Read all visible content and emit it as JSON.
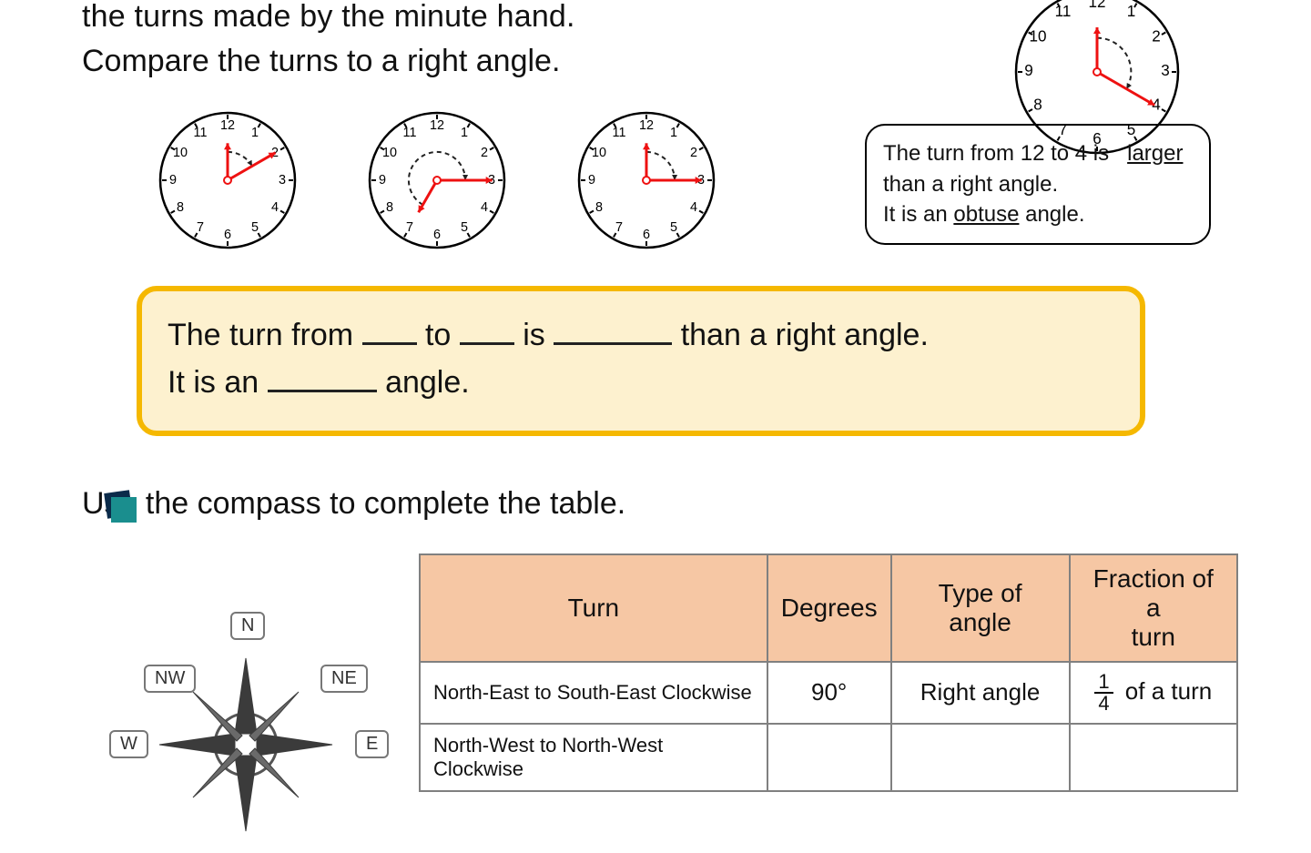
{
  "intro": {
    "line1": "the turns made by the minute hand.",
    "line2": "Compare the turns to a right angle."
  },
  "clocks": {
    "face_color": "#ffffff",
    "border_color": "#000000",
    "hand_color": "#e11",
    "arc_color": "#333333",
    "numbers": [
      "12",
      "1",
      "2",
      "3",
      "4",
      "5",
      "6",
      "7",
      "8",
      "9",
      "10",
      "11"
    ],
    "top_right": {
      "hour_to": 12,
      "minute_to": 4
    },
    "row": [
      {
        "hour_to": 12,
        "minute_to": 2
      },
      {
        "hour_to": 7,
        "minute_to": 3
      },
      {
        "hour_to": 12,
        "minute_to": 3
      }
    ]
  },
  "example": {
    "pre": "The turn from 12 to 4 is",
    "ul1": "larger",
    "mid": " than a right angle.",
    "pre2": "It is an ",
    "ul2": "obtuse",
    "post2": " angle."
  },
  "answer_template": {
    "A": "The turn from ",
    "B": " to ",
    "C": " is ",
    "D": " than a right angle.",
    "E": "It is an ",
    "F": " angle."
  },
  "task2": {
    "prompt": "Use the compass to complete the table.",
    "compass_labels": [
      "N",
      "NE",
      "E",
      "NW",
      "W"
    ]
  },
  "table": {
    "headers": [
      "Turn",
      "Degrees",
      "Type of angle",
      "Fraction of a\nturn"
    ],
    "rows": [
      {
        "turn": "North-East to South-East Clockwise",
        "degrees": "90°",
        "type": "Right angle",
        "fraction_n": "1",
        "fraction_d": "4",
        "fraction_txt": " of a turn"
      },
      {
        "turn": "North-West to North-West Clockwise",
        "degrees": "",
        "type": "",
        "fraction_n": "",
        "fraction_d": "",
        "fraction_txt": ""
      }
    ],
    "header_bg": "#f6c7a4",
    "border": "#808080"
  },
  "bullet_colors": {
    "front": "#1a8e8e",
    "back": "#0b2b4a"
  }
}
